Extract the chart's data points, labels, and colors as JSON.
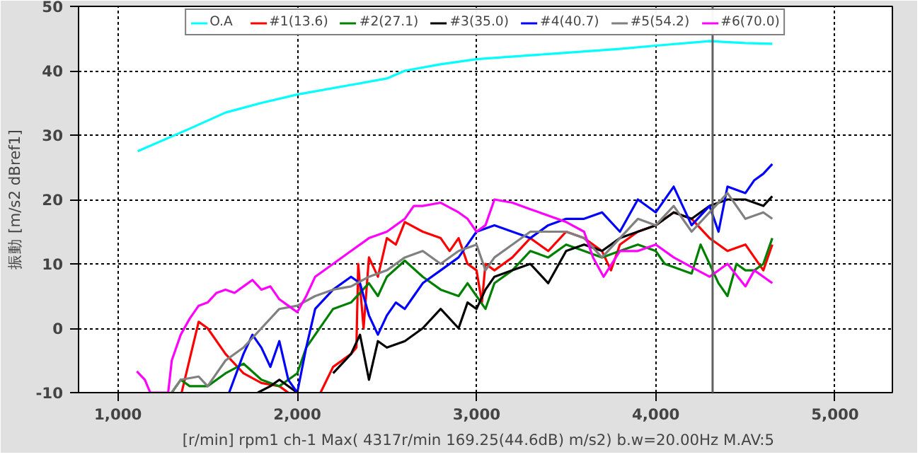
{
  "chart_data": {
    "type": "line",
    "xlabel": "[r/min] rpm1  ch-1  Max( 4317r/min 169.25(44.6dB) m/s2)  b.w=20.00Hz M.AV:5",
    "ylabel": "振動 [m/s2 dBref1]",
    "xlim": [
      780,
      5320
    ],
    "ylim": [
      -10,
      50
    ],
    "xticks": [
      {
        "value": 1000,
        "label": "1,000"
      },
      {
        "value": 2000,
        "label": "2,000"
      },
      {
        "value": 3000,
        "label": "3,000"
      },
      {
        "value": 4000,
        "label": "4,000"
      },
      {
        "value": 5000,
        "label": "5,000"
      }
    ],
    "yticks": [
      -10,
      0,
      10,
      20,
      30,
      40,
      50
    ],
    "grid": true,
    "legend": "top",
    "line_style": "solid",
    "marker": "none",
    "ref_lines": [
      {
        "axis": "x",
        "value": 4317,
        "label": null,
        "color": "#606060"
      }
    ],
    "series": [
      {
        "name": "O.A",
        "color": "#00ffff",
        "x": [
          1110,
          1400,
          1600,
          1800,
          2000,
          2300,
          2500,
          2600,
          2800,
          3000,
          3400,
          3800,
          4000,
          4300,
          4500,
          4650
        ],
        "values": [
          27.5,
          31,
          33.5,
          35,
          36.3,
          37.8,
          38.8,
          40,
          41,
          41.8,
          42.6,
          43.4,
          43.9,
          44.6,
          44.3,
          44.2
        ]
      },
      {
        "name": "#1(13.6)",
        "color": "#ff0000",
        "x": [
          1355,
          1450,
          1500,
          1600,
          1700,
          1800,
          1900,
          1950,
          2040,
          2130,
          2200,
          2300,
          2330,
          2340,
          2370,
          2400,
          2450,
          2500,
          2550,
          2600,
          2700,
          2800,
          2850,
          2900,
          2950,
          3000,
          3030,
          3050,
          3100,
          3200,
          3300,
          3400,
          3500,
          3600,
          3700,
          3750,
          3800,
          3900,
          4000,
          4100,
          4200,
          4300,
          4400,
          4500,
          4600,
          4650
        ],
        "values": [
          -10,
          1,
          0,
          -4,
          -7,
          -8.5,
          -9,
          -10,
          null,
          -10,
          -6,
          -4,
          -3,
          10,
          0,
          11,
          8,
          14,
          13,
          16.5,
          15,
          14,
          12,
          14,
          10,
          9,
          4,
          10,
          9,
          11,
          14,
          12,
          15,
          14,
          12,
          9,
          13,
          15,
          16,
          18,
          17,
          14,
          12,
          13,
          9,
          13
        ]
      },
      {
        "name": "#2(27.1)",
        "color": "#008000",
        "x": [
          1300,
          1350,
          1400,
          1500,
          1600,
          1700,
          1800,
          1900,
          2000,
          2050,
          2100,
          2200,
          2300,
          2400,
          2450,
          2500,
          2600,
          2700,
          2800,
          2900,
          2950,
          3000,
          3050,
          3100,
          3200,
          3300,
          3400,
          3500,
          3600,
          3700,
          3800,
          3900,
          4000,
          4050,
          4200,
          4250,
          4300,
          4350,
          4400,
          4450,
          4500,
          4550,
          4600,
          4650
        ],
        "values": [
          -10,
          -8,
          -9,
          -9,
          -7,
          -5.5,
          -8,
          -9,
          -7,
          -3,
          -1,
          3,
          4,
          7,
          5,
          8,
          10.5,
          8,
          6,
          5,
          7,
          5,
          3,
          7,
          9,
          12,
          11,
          13,
          12,
          11,
          12,
          13,
          12,
          10,
          8.5,
          13,
          10,
          7,
          5,
          10,
          9,
          9,
          10,
          14
        ]
      },
      {
        "name": "#3(35.0)",
        "color": "#000000",
        "x": [
          1780,
          1850,
          1900,
          2000,
          2100,
          2200,
          2300,
          2350,
          2400,
          2450,
          2500,
          2600,
          2700,
          2800,
          2900,
          2950,
          3000,
          3050,
          3100,
          3200,
          3300,
          3400,
          3500,
          3600,
          3700,
          3800,
          3900,
          4000,
          4100,
          4200,
          4300,
          4400,
          4500,
          4600,
          4650
        ],
        "values": [
          -10,
          -9,
          -8,
          -10,
          null,
          -7,
          -4,
          -1,
          -8,
          -2,
          -3,
          -2,
          0,
          3,
          0,
          4,
          3,
          6,
          8,
          9,
          10,
          7,
          12,
          13,
          12,
          14,
          15,
          16,
          18,
          17,
          19,
          20,
          20,
          19,
          20.5
        ]
      },
      {
        "name": "#4(40.7)",
        "color": "#0000ff",
        "x": [
          1620,
          1700,
          1750,
          1800,
          1850,
          1900,
          1950,
          2000,
          2050,
          2100,
          2200,
          2300,
          2350,
          2400,
          2450,
          2500,
          2550,
          2600,
          2650,
          2700,
          2800,
          2900,
          2950,
          3000,
          3100,
          3200,
          3300,
          3400,
          3500,
          3600,
          3700,
          3800,
          3900,
          4000,
          4100,
          4200,
          4300,
          4350,
          4400,
          4500,
          4550,
          4600,
          4650
        ],
        "values": [
          -10,
          -4,
          -1,
          -3,
          -6,
          -2,
          -8,
          -10,
          -3,
          3,
          6,
          8,
          7,
          2,
          -1,
          2,
          4,
          3,
          5,
          7,
          9,
          11,
          13,
          15,
          16,
          15,
          14,
          16,
          17,
          17,
          18,
          15,
          20,
          18,
          22,
          16,
          19,
          15,
          22,
          21,
          23,
          24,
          25.5
        ]
      },
      {
        "name": "#5(54.2)",
        "color": "#808080",
        "x": [
          1300,
          1350,
          1450,
          1500,
          1600,
          1700,
          1800,
          1900,
          2000,
          2100,
          2200,
          2300,
          2400,
          2500,
          2600,
          2700,
          2800,
          2900,
          3000,
          3050,
          3100,
          3200,
          3300,
          3400,
          3500,
          3600,
          3700,
          3800,
          3900,
          4000,
          4100,
          4200,
          4300,
          4400,
          4500,
          4600,
          4650
        ],
        "values": [
          -10,
          -8,
          -7.5,
          -9,
          -5,
          -3,
          0,
          3,
          3.5,
          5,
          6,
          6.5,
          8,
          9,
          11,
          12,
          10,
          12,
          13,
          9,
          11,
          13,
          15,
          15,
          15,
          14,
          11,
          14,
          17,
          16,
          19,
          15,
          18,
          21,
          17,
          18,
          17
        ]
      },
      {
        "name": "#6(70.0)",
        "color": "#ff00ff",
        "x": [
          1105,
          1150,
          1180,
          1280,
          1300,
          1350,
          1400,
          1450,
          1500,
          1550,
          1600,
          1650,
          1700,
          1750,
          1800,
          1850,
          1900,
          1950,
          2000,
          2050,
          2100,
          2200,
          2300,
          2400,
          2500,
          2600,
          2650,
          2700,
          2800,
          2900,
          2950,
          3000,
          3050,
          3100,
          3200,
          3300,
          3400,
          3500,
          3600,
          3650,
          3709,
          3800,
          3900,
          4000,
          4100,
          4200,
          4300,
          4400,
          4500,
          4550,
          4650
        ],
        "values": [
          -6.7,
          -8,
          -10,
          -10,
          -5,
          -1,
          1.5,
          3.5,
          4,
          5.5,
          6,
          5.5,
          6.5,
          7.5,
          6,
          6.5,
          4.5,
          3.5,
          2.5,
          5,
          8,
          10,
          12,
          14,
          15,
          17,
          19,
          19,
          19.5,
          18,
          17,
          15,
          16,
          20,
          19.5,
          18.5,
          17.5,
          16.5,
          15,
          11,
          8,
          12,
          12,
          13,
          11,
          9.5,
          8,
          10,
          6.5,
          9,
          7
        ]
      }
    ]
  }
}
